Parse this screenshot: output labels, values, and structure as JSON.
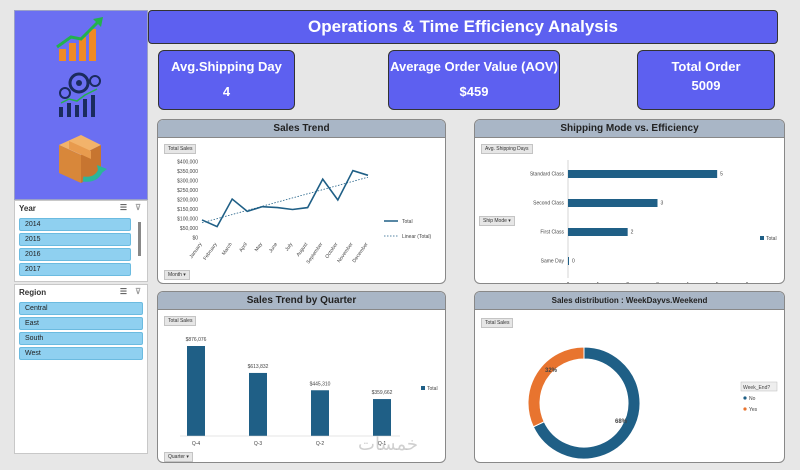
{
  "header": {
    "title": "Operations & Time Efficiency Analysis"
  },
  "kpis": {
    "shipping": {
      "label": "Avg.Shipping Day",
      "value": "4"
    },
    "aov": {
      "label": "Average Order Value (AOV)",
      "value": "$459"
    },
    "orders": {
      "label": "Total Order",
      "value": "5009"
    }
  },
  "slicers": {
    "year": {
      "title": "Year",
      "items": [
        "2014",
        "2015",
        "2016",
        "2017"
      ]
    },
    "region": {
      "title": "Region",
      "items": [
        "Central",
        "East",
        "South",
        "West"
      ]
    }
  },
  "sales_trend": {
    "title": "Sales Trend",
    "tag": "Total Sales",
    "filter": "Month",
    "legend_total": "Total",
    "legend_linear": "Linear (Total)"
  },
  "shipping_mode": {
    "title": "Shipping Mode vs. Efficiency",
    "tag": "Avg. Shipping Days",
    "filter": "Ship Mode",
    "legend": "Total"
  },
  "quarter": {
    "title": "Sales Trend by Quarter",
    "tag": "Total Sales",
    "filter": "Quarter",
    "legend": "Total"
  },
  "distribution": {
    "title": "Sales distribution : WeekDayvs.Weekend",
    "tag": "Total Sales",
    "legend_title": "Week_End?",
    "legend_no": "No",
    "legend_yes": "Yes"
  },
  "watermark": "خمسات",
  "colors": {
    "accent": "#5d60f0",
    "series": "#1f5f86",
    "orange": "#e8742f"
  },
  "chart_data": [
    {
      "type": "line",
      "title": "Sales Trend",
      "categories": [
        "January",
        "February",
        "March",
        "April",
        "May",
        "June",
        "July",
        "August",
        "September",
        "October",
        "November",
        "December"
      ],
      "values": [
        95000,
        60000,
        205000,
        140000,
        165000,
        160000,
        150000,
        160000,
        310000,
        200000,
        355000,
        330000
      ],
      "ylim": [
        0,
        400000
      ],
      "ticks": [
        "$400,000",
        "$350,000",
        "$300,000",
        "$250,000",
        "$200,000",
        "$150,000",
        "$100,000",
        "$50,000",
        "$0"
      ],
      "trendline": [
        [
          0,
          80000
        ],
        [
          11,
          320000
        ]
      ]
    },
    {
      "type": "bar",
      "orientation": "horizontal",
      "title": "Shipping Mode vs. Efficiency",
      "categories": [
        "Standard Class",
        "Second Class",
        "First Class",
        "Same Day"
      ],
      "values": [
        5,
        3,
        2,
        0
      ],
      "xlim": [
        0,
        6
      ],
      "ticks": [
        "0",
        "1",
        "2",
        "3",
        "4",
        "5",
        "6"
      ]
    },
    {
      "type": "bar",
      "title": "Sales Trend by Quarter",
      "categories": [
        "Q-4",
        "Q-3",
        "Q-2",
        "Q-1"
      ],
      "values": [
        876076,
        613832,
        445310,
        359662
      ],
      "labels": [
        "$876,076",
        "$613,832",
        "$445,310",
        "$359,662"
      ]
    },
    {
      "type": "pie",
      "title": "Sales distribution : WeekDayvs.Weekend",
      "categories": [
        "No",
        "Yes"
      ],
      "values": [
        68,
        32
      ],
      "labels": [
        "68%",
        "32%"
      ]
    }
  ]
}
